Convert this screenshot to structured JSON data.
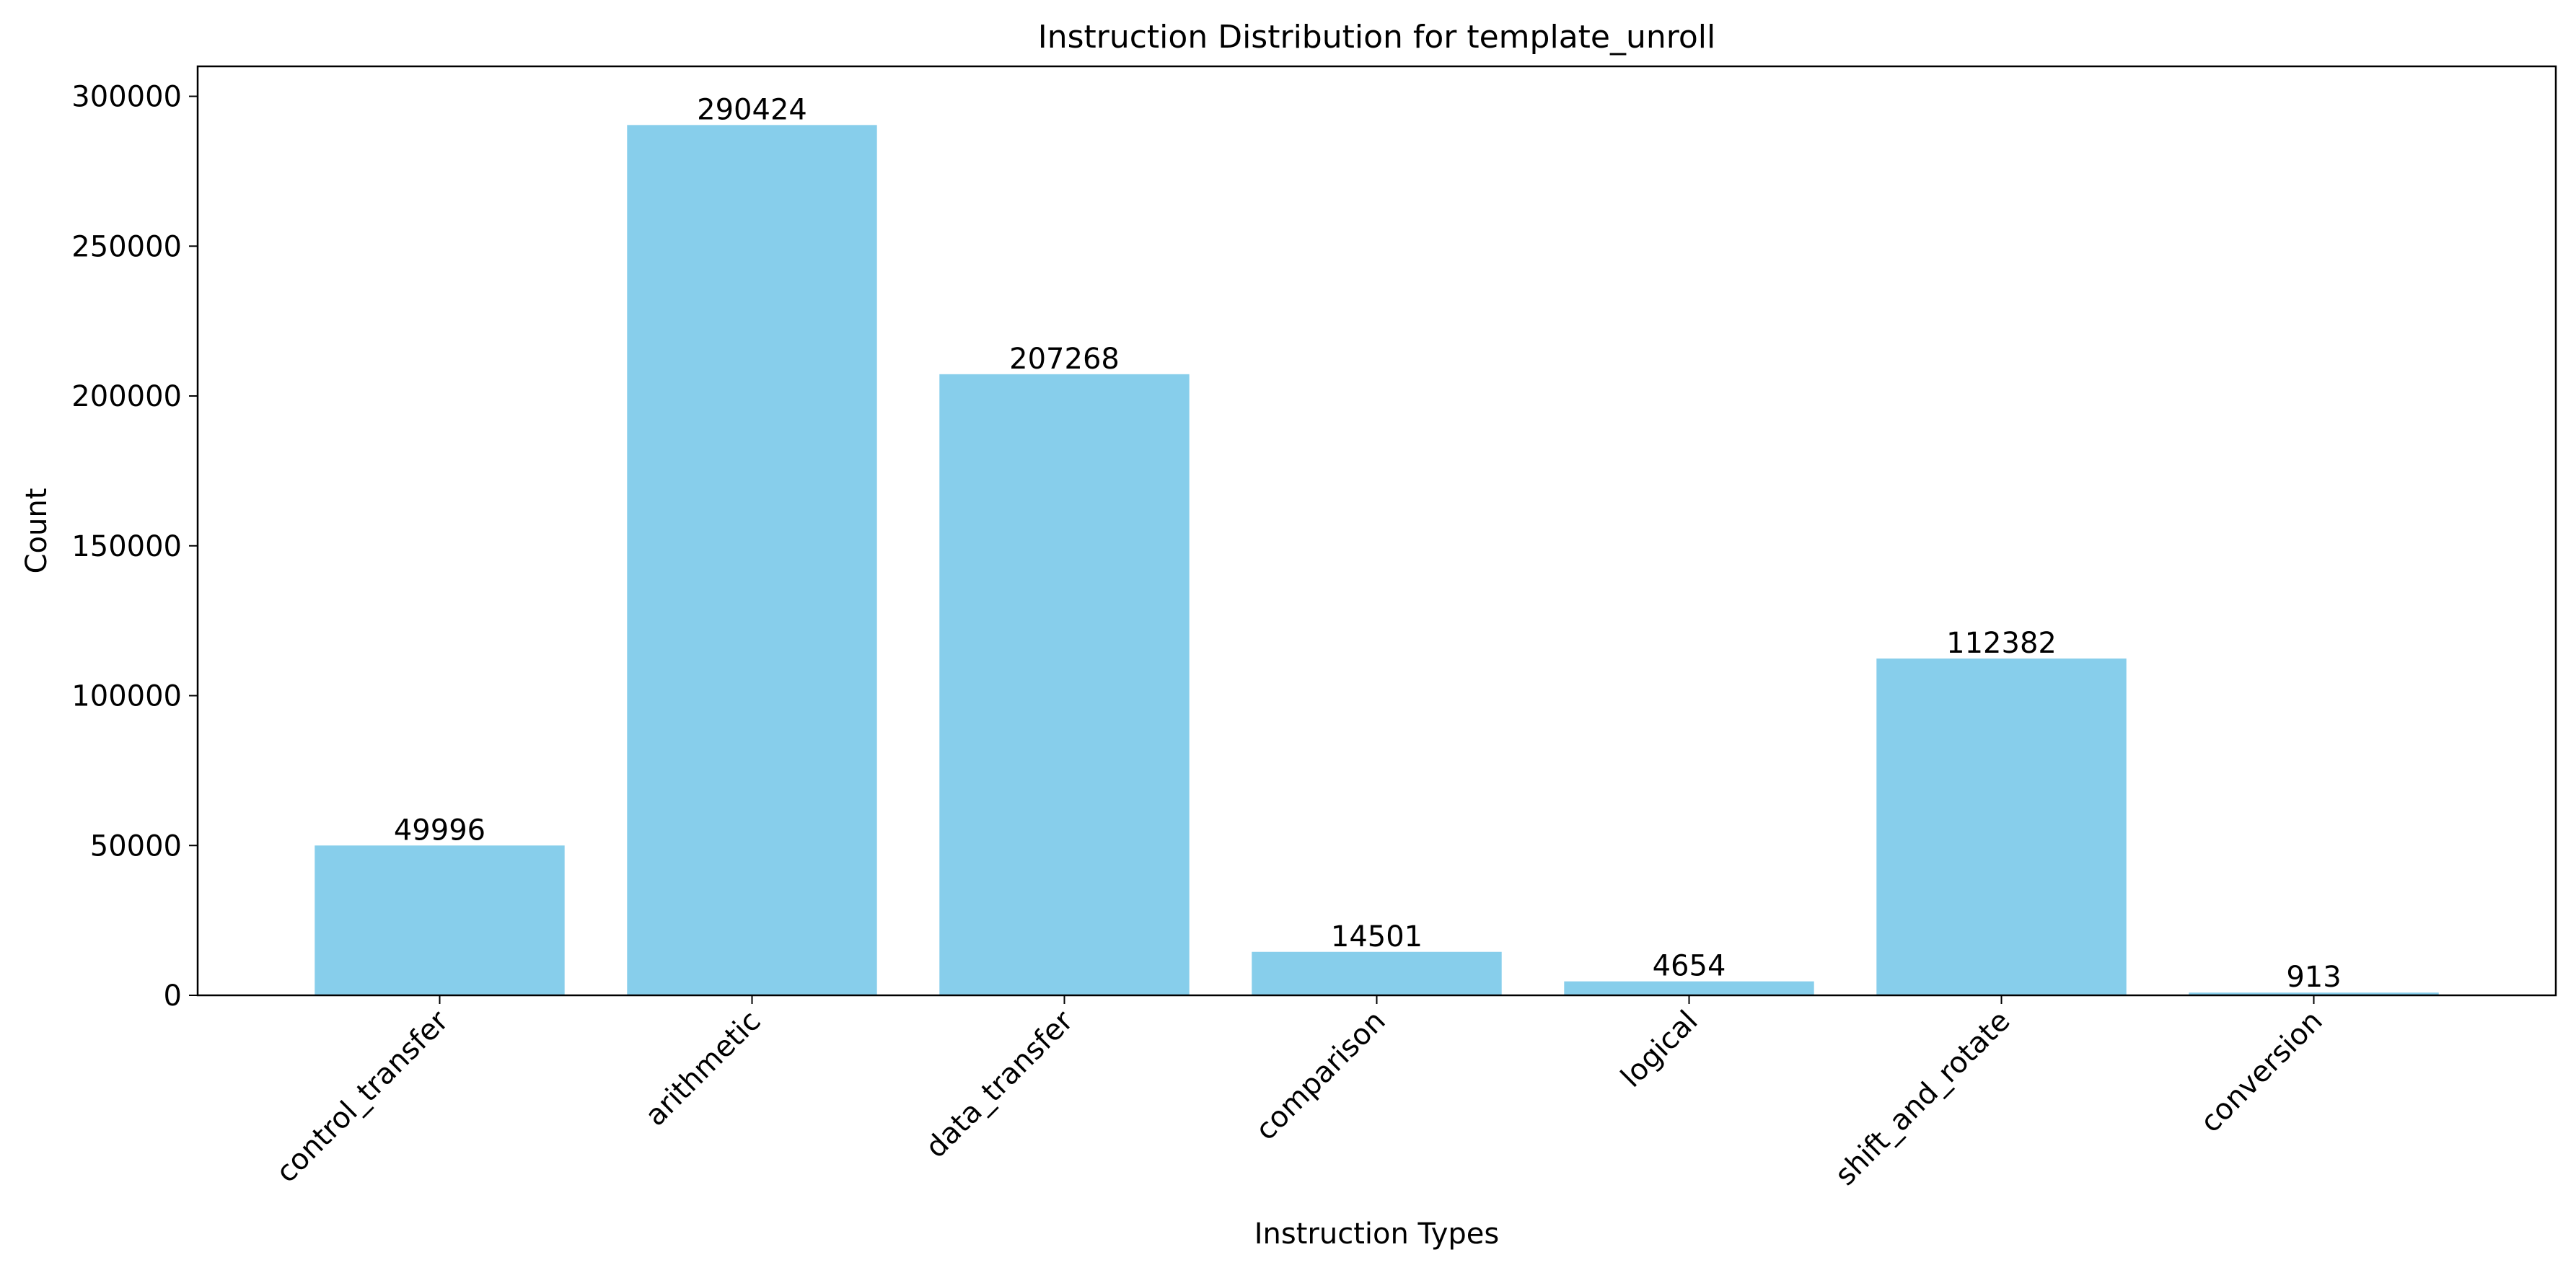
{
  "chart_data": {
    "type": "bar",
    "title": "Instruction Distribution for template_unroll",
    "xlabel": "Instruction Types",
    "ylabel": "Count",
    "categories": [
      "control_transfer",
      "arithmetic",
      "data_transfer",
      "comparison",
      "logical",
      "shift_and_rotate",
      "conversion"
    ],
    "values": [
      49996,
      290424,
      207268,
      14501,
      4654,
      112382,
      913
    ],
    "data_labels": [
      "49996",
      "290424",
      "207268",
      "14501",
      "4654",
      "112382",
      "913"
    ],
    "ylim": [
      0,
      310000
    ],
    "yticks": [
      0,
      50000,
      100000,
      150000,
      200000,
      250000,
      300000
    ],
    "ytick_labels": [
      "0",
      "50000",
      "100000",
      "150000",
      "200000",
      "250000",
      "300000"
    ],
    "bar_color": "#87ceeb",
    "grid": false,
    "legend": "none"
  }
}
